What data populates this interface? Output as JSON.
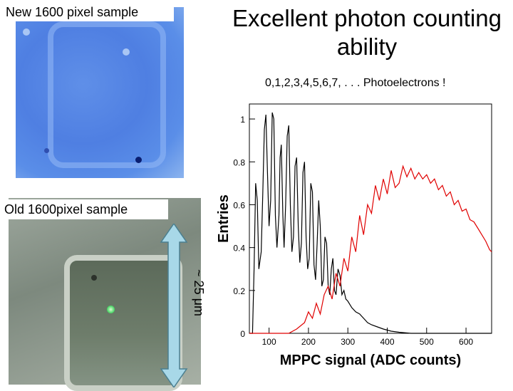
{
  "labels": {
    "new_sample": "New 1600 pixel sample",
    "old_sample": "Old 1600pixel sample",
    "scale": "~ 25 μm"
  },
  "title": {
    "line1": "Excellent photon counting",
    "line2": "ability"
  },
  "subtitle": "0,1,2,3,4,5,6,7, . . . Photoelectrons !",
  "colors": {
    "black_series": "#000000",
    "red_series": "#e00000",
    "arrow": "#a8d8e8"
  },
  "chart_data": {
    "type": "line",
    "title": "",
    "xlabel": "MPPC signal (ADC counts)",
    "ylabel": "Entries",
    "xlim": [
      50,
      665
    ],
    "ylim": [
      0,
      1.07
    ],
    "x_ticks": [
      100,
      200,
      300,
      400,
      500,
      600
    ],
    "x_tick_labels": [
      "100",
      "200",
      "300",
      "400",
      "500",
      "600"
    ],
    "y_ticks": [
      0,
      0.2,
      0.4,
      0.6,
      0.8,
      1
    ],
    "y_tick_labels": [
      "0",
      "0.2",
      "0.4",
      "0.6",
      "0.8",
      "1"
    ],
    "series": [
      {
        "name": "Old 1600pixel sample",
        "color": "#000000",
        "x": [
          50,
          58,
          62,
          66,
          70,
          74,
          80,
          84,
          88,
          92,
          96,
          100,
          104,
          108,
          112,
          116,
          120,
          125,
          128,
          131,
          135,
          138,
          142,
          146,
          150,
          154,
          158,
          162,
          166,
          170,
          174,
          178,
          182,
          186,
          190,
          194,
          198,
          202,
          206,
          210,
          214,
          218,
          222,
          226,
          230,
          234,
          238,
          242,
          246,
          250,
          254,
          258,
          262,
          266,
          270,
          275,
          280,
          285,
          290,
          295,
          300,
          310,
          320,
          330,
          340,
          350,
          360,
          375,
          390,
          410,
          430,
          460,
          500,
          550,
          600,
          665
        ],
        "y": [
          0,
          0,
          0.3,
          0.7,
          0.62,
          0.3,
          0.38,
          0.65,
          0.95,
          1.02,
          0.75,
          0.5,
          0.62,
          1.03,
          1.0,
          0.55,
          0.4,
          0.55,
          0.82,
          0.88,
          0.55,
          0.4,
          0.6,
          0.92,
          0.97,
          0.6,
          0.38,
          0.45,
          0.78,
          0.82,
          0.5,
          0.33,
          0.42,
          0.75,
          0.8,
          0.45,
          0.3,
          0.35,
          0.7,
          0.66,
          0.32,
          0.25,
          0.42,
          0.62,
          0.5,
          0.22,
          0.25,
          0.45,
          0.42,
          0.22,
          0.18,
          0.3,
          0.35,
          0.2,
          0.18,
          0.3,
          0.27,
          0.18,
          0.2,
          0.16,
          0.15,
          0.12,
          0.1,
          0.09,
          0.07,
          0.05,
          0.04,
          0.03,
          0.02,
          0.01,
          0.005,
          0,
          0,
          0,
          0,
          0
        ]
      },
      {
        "name": "New 1600 pixel sample",
        "color": "#e00000",
        "x": [
          50,
          150,
          170,
          190,
          200,
          210,
          220,
          230,
          240,
          250,
          260,
          270,
          280,
          290,
          300,
          310,
          320,
          330,
          340,
          350,
          360,
          370,
          380,
          390,
          400,
          410,
          420,
          430,
          440,
          450,
          460,
          470,
          480,
          490,
          500,
          510,
          520,
          530,
          540,
          550,
          560,
          570,
          580,
          590,
          600,
          610,
          620,
          630,
          640,
          650,
          660,
          665
        ],
        "y": [
          0,
          0,
          0.02,
          0.05,
          0.1,
          0.07,
          0.14,
          0.09,
          0.18,
          0.22,
          0.16,
          0.28,
          0.22,
          0.35,
          0.29,
          0.45,
          0.38,
          0.55,
          0.46,
          0.6,
          0.56,
          0.69,
          0.62,
          0.72,
          0.65,
          0.76,
          0.68,
          0.7,
          0.78,
          0.73,
          0.77,
          0.72,
          0.75,
          0.72,
          0.74,
          0.7,
          0.72,
          0.67,
          0.69,
          0.64,
          0.66,
          0.6,
          0.62,
          0.57,
          0.58,
          0.53,
          0.52,
          0.49,
          0.46,
          0.43,
          0.39,
          0.38
        ]
      }
    ]
  }
}
